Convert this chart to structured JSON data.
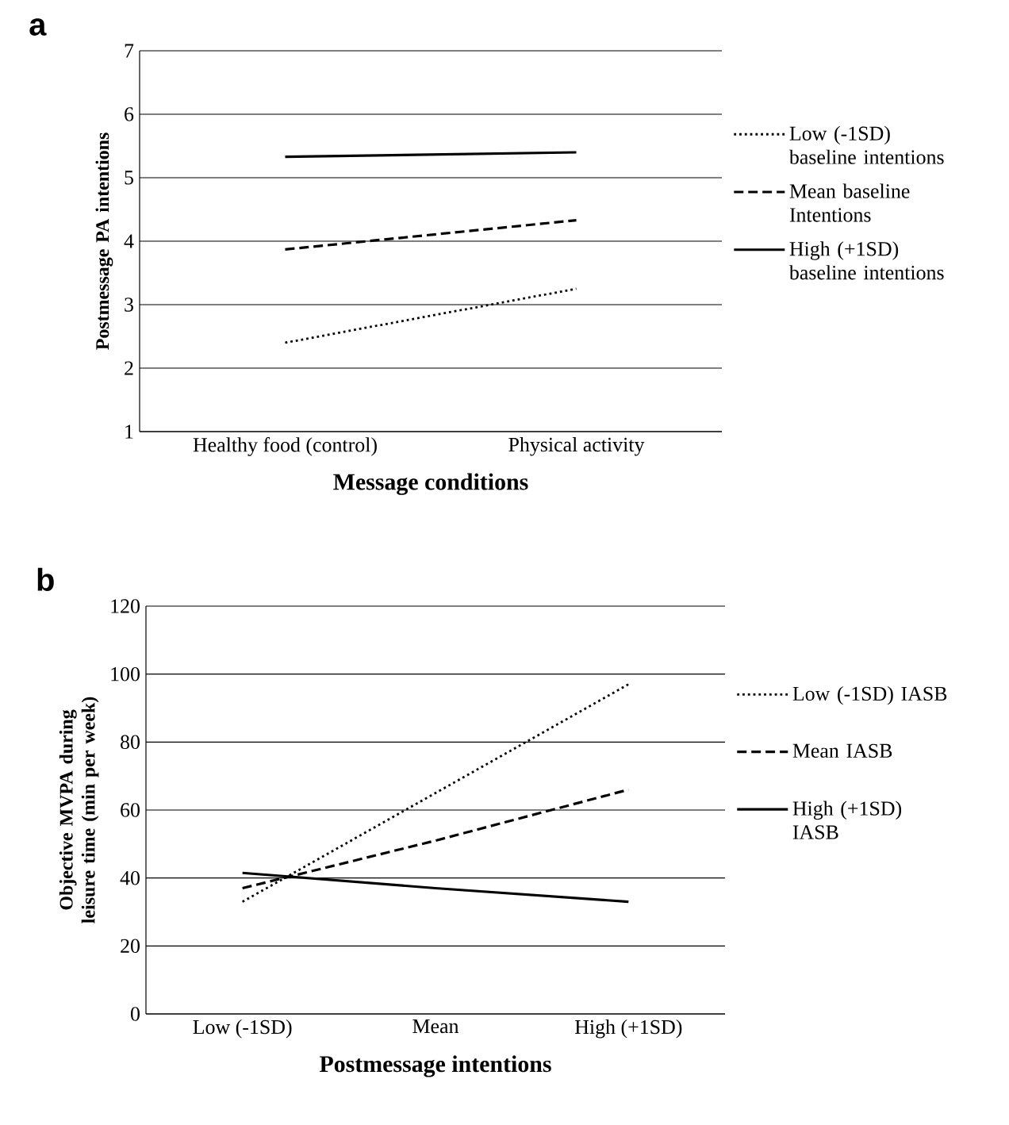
{
  "chart_data": [
    {
      "type": "line",
      "title": "a",
      "xlabel": "Message conditions",
      "ylabel": "Postmessage PA intentions",
      "categories": [
        "Healthy food (control)",
        "Physical activity"
      ],
      "series": [
        {
          "name": "Low (-1SD) baseline intentions",
          "color": "#000000",
          "line_style": "dotted",
          "values": [
            2.4,
            3.25
          ]
        },
        {
          "name": "Mean baseline Intentions",
          "color": "#000000",
          "line_style": "dashed",
          "values": [
            3.87,
            4.33
          ]
        },
        {
          "name": "High (+1SD) baseline intentions",
          "color": "#000000",
          "line_style": "solid",
          "values": [
            5.33,
            5.4
          ]
        }
      ],
      "ylim": [
        1,
        7
      ],
      "yticks": [
        1,
        2,
        3,
        4,
        5,
        6,
        7
      ],
      "grid": "y",
      "legend": "right"
    },
    {
      "type": "line",
      "title": "b",
      "xlabel": "Postmessage intentions",
      "ylabel": "Objective MVPA during leisure time (min per week)",
      "categories": [
        "Low (-1SD)",
        "Mean",
        "High (+1SD)"
      ],
      "series": [
        {
          "name": "Low (-1SD) IASB",
          "color": "#000000",
          "line_style": "dotted",
          "values": [
            33,
            65,
            97
          ]
        },
        {
          "name": "Mean IASB",
          "color": "#000000",
          "line_style": "dashed",
          "values": [
            37,
            51,
            66
          ]
        },
        {
          "name": "High (+1SD) IASB",
          "color": "#000000",
          "line_style": "solid",
          "values": [
            41.5,
            37,
            33
          ]
        }
      ],
      "ylim": [
        0,
        120
      ],
      "yticks": [
        0,
        20,
        40,
        60,
        80,
        100,
        120
      ],
      "grid": "y",
      "legend": "right"
    }
  ]
}
